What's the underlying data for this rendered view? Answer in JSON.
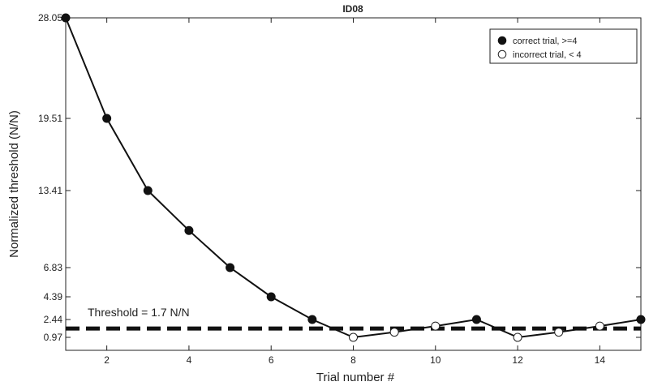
{
  "chart_data": {
    "type": "line",
    "title": "ID08",
    "xlabel": "Trial number #",
    "ylabel": "Normalized threshold (N/N)",
    "xlim": [
      1,
      15
    ],
    "ylim": [
      0,
      28.05
    ],
    "x_ticks": [
      2,
      4,
      6,
      8,
      10,
      12,
      14
    ],
    "y_ticks": [
      {
        "value": 0.97,
        "label": "0.97"
      },
      {
        "value": 2.44,
        "label": "2.44"
      },
      {
        "value": 4.39,
        "label": "4.39"
      },
      {
        "value": 6.83,
        "label": "6.83"
      },
      {
        "value": 13.41,
        "label": "13.41"
      },
      {
        "value": 19.51,
        "label": "19.51"
      },
      {
        "value": 28.05,
        "label": "28.05"
      }
    ],
    "x": [
      1,
      2,
      3,
      4,
      5,
      6,
      7,
      8,
      9,
      10,
      11,
      12,
      13,
      14,
      15
    ],
    "y": [
      28.05,
      19.51,
      13.41,
      10.0,
      6.83,
      4.39,
      2.44,
      0.97,
      1.4,
      1.9,
      2.44,
      0.97,
      1.4,
      1.9,
      2.44
    ],
    "correct": [
      true,
      true,
      true,
      true,
      true,
      true,
      true,
      false,
      false,
      false,
      true,
      false,
      false,
      false,
      true
    ],
    "legend": {
      "position": "top-right",
      "entries": [
        {
          "label": "correct trial, >=4",
          "marker": "filled"
        },
        {
          "label": "incorrect trial, < 4",
          "marker": "open"
        }
      ]
    },
    "threshold": {
      "value": 1.7,
      "label": "Threshold = 1.7 N/N"
    },
    "grid": false
  }
}
